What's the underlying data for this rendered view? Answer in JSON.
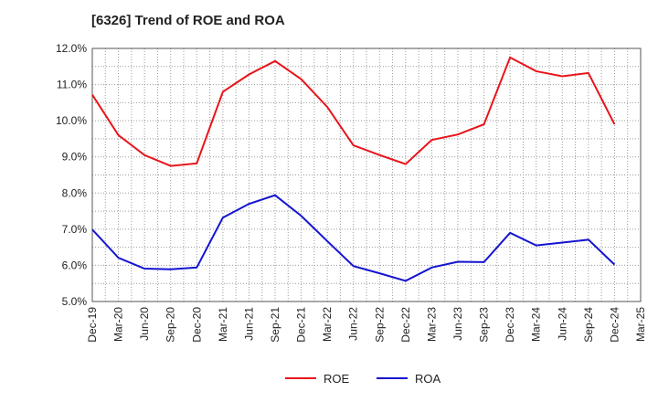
{
  "chart_data": {
    "type": "line",
    "title": "[6326]  Trend of ROE and ROA",
    "xlabel": "",
    "ylabel": "",
    "x": [
      "Dec-19",
      "Mar-20",
      "Jun-20",
      "Sep-20",
      "Dec-20",
      "Mar-21",
      "Jun-21",
      "Sep-21",
      "Dec-21",
      "Mar-22",
      "Jun-22",
      "Sep-22",
      "Dec-22",
      "Mar-23",
      "Jun-23",
      "Sep-23",
      "Dec-23",
      "Mar-24",
      "Jun-24",
      "Sep-24",
      "Dec-24",
      "Mar-25"
    ],
    "ylim": [
      5.0,
      12.0
    ],
    "yticks": [
      "5.0%",
      "6.0%",
      "7.0%",
      "8.0%",
      "9.0%",
      "10.0%",
      "11.0%",
      "12.0%"
    ],
    "grid": true,
    "legend_position": "bottom",
    "series": [
      {
        "name": "ROE",
        "color": "#e8141b",
        "values": [
          10.72,
          9.6,
          9.05,
          8.75,
          8.82,
          10.8,
          11.28,
          11.65,
          11.15,
          10.38,
          9.32,
          9.05,
          8.8,
          9.47,
          9.62,
          9.9,
          11.75,
          11.37,
          11.23,
          11.32,
          9.9,
          null
        ]
      },
      {
        "name": "ROA",
        "color": "#1414d2",
        "values": [
          6.99,
          6.21,
          5.91,
          5.89,
          5.94,
          7.32,
          7.7,
          7.94,
          7.37,
          6.67,
          5.98,
          5.78,
          5.57,
          5.94,
          6.1,
          6.09,
          6.9,
          6.55,
          6.63,
          6.71,
          6.02,
          null
        ]
      }
    ]
  }
}
